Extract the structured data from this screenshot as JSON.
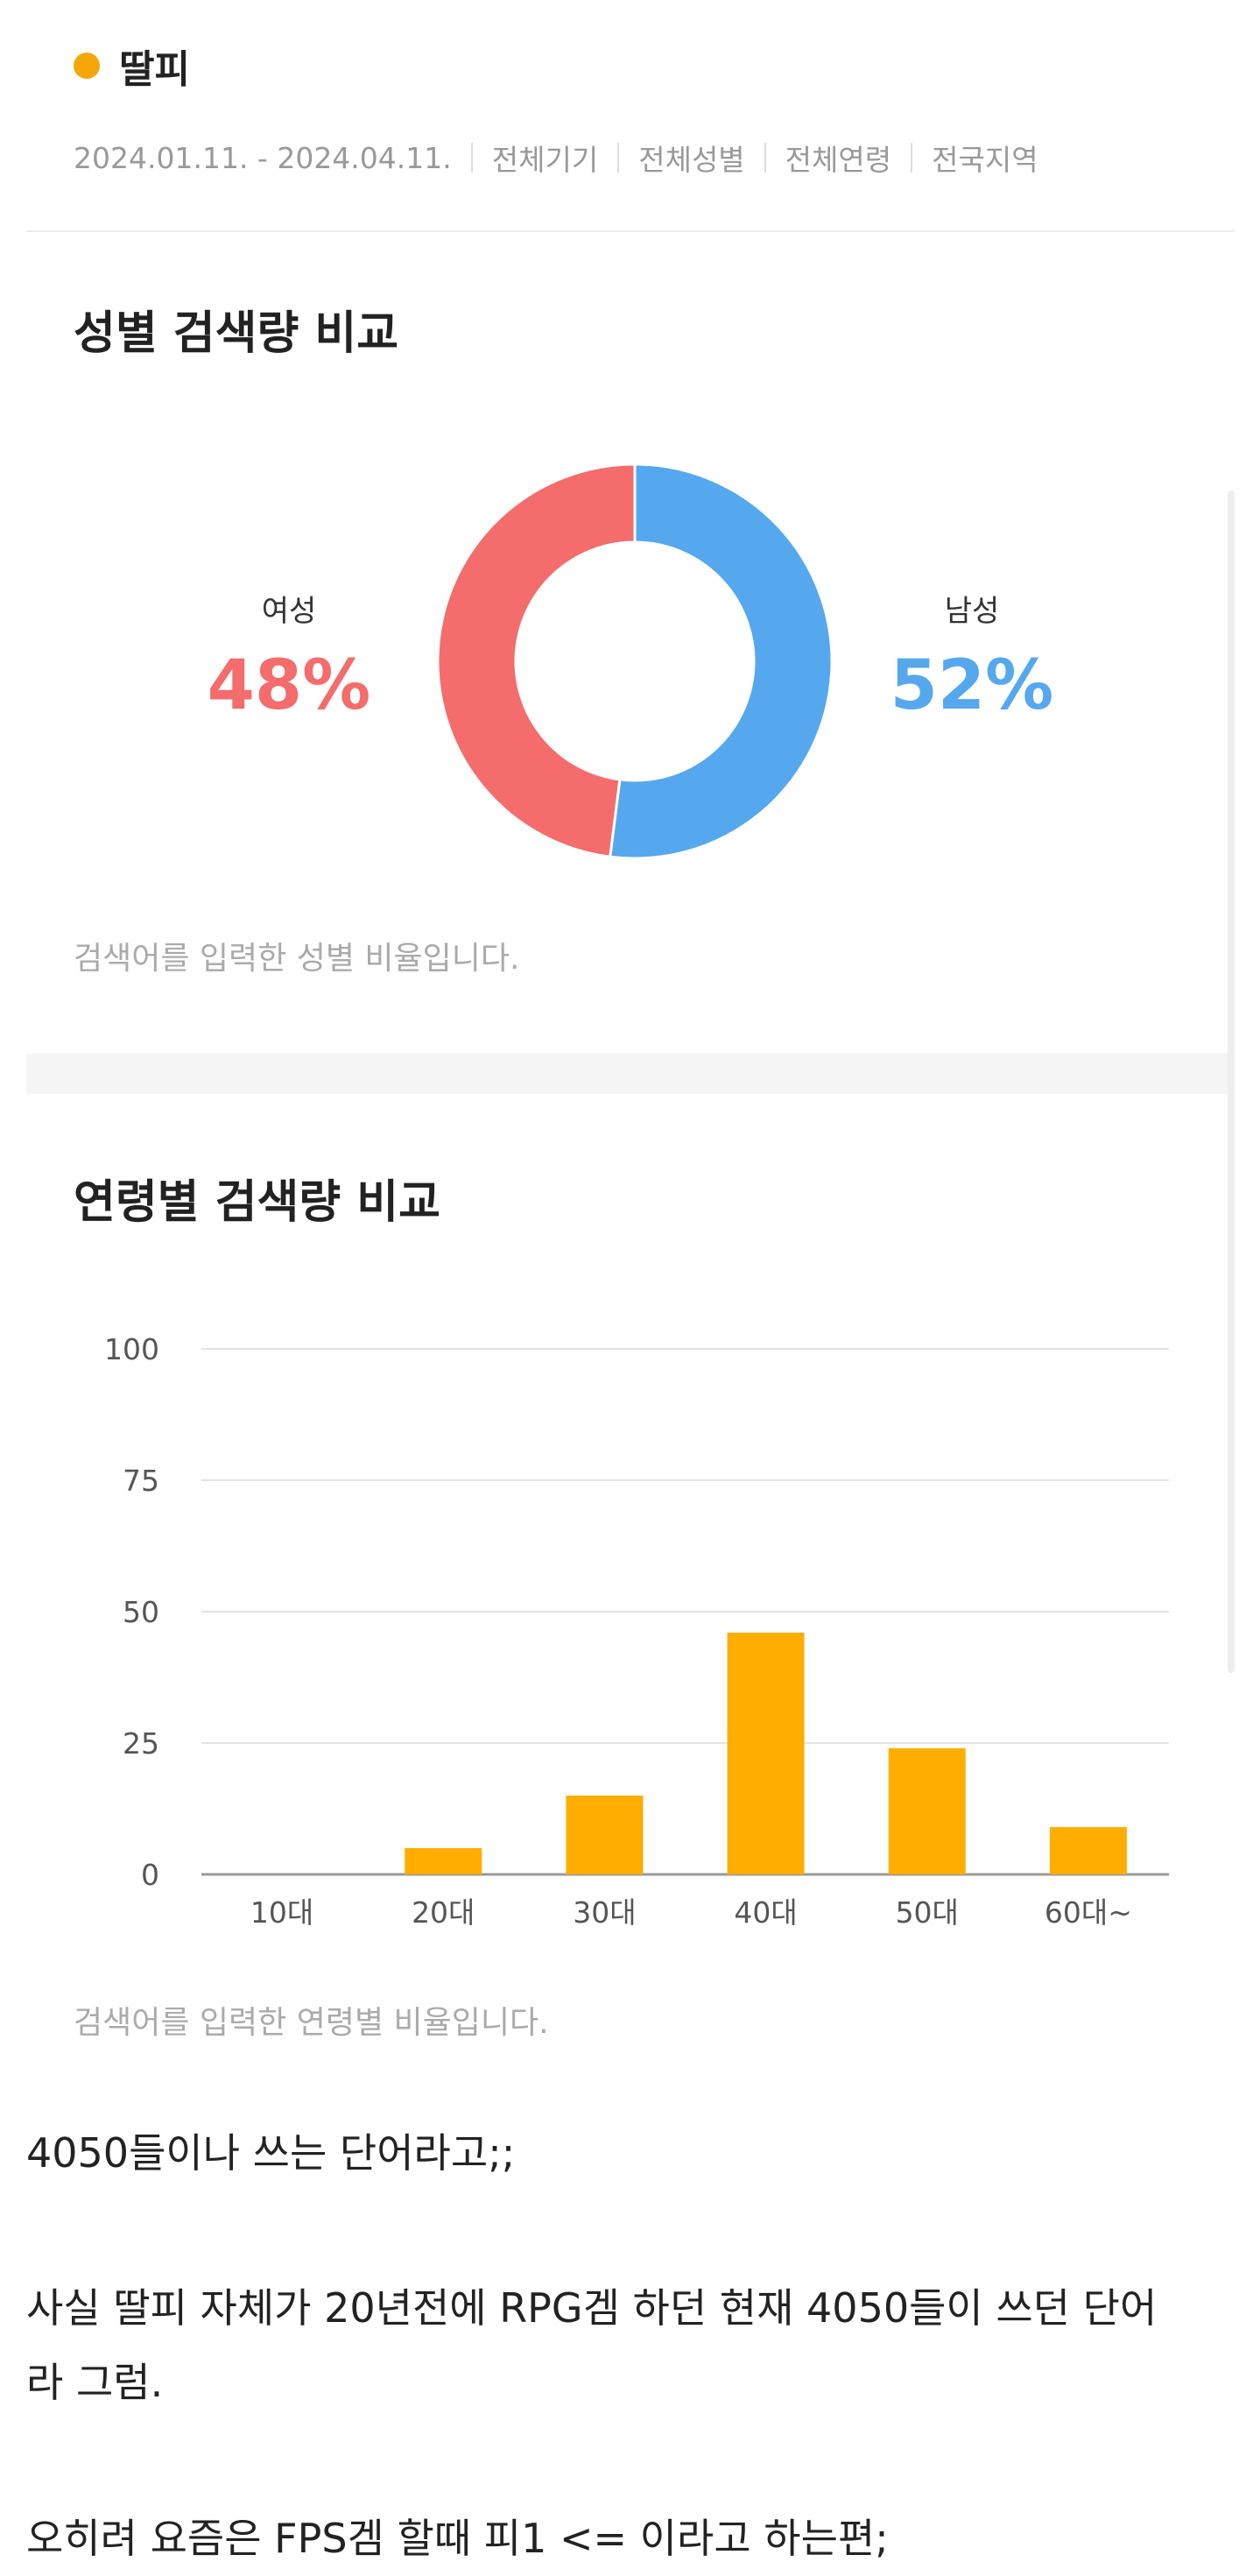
{
  "header": {
    "keyword": "딸피",
    "filters": [
      "2024.01.11. - 2024.04.11.",
      "전체기기",
      "전체성별",
      "전체연령",
      "전국지역"
    ]
  },
  "gender_section": {
    "title": "성별 검색량 비교",
    "female_label": "여성",
    "female_pct": "48%",
    "male_label": "남성",
    "male_pct": "52%",
    "caption": "검색어를 입력한 성별 비율입니다."
  },
  "age_section": {
    "title": "연령별 검색량 비교",
    "caption": "검색어를 입력한 연령별 비율입니다."
  },
  "colors": {
    "accent": "#F5A70A",
    "female": "#F46C6C",
    "male": "#56A8EE",
    "bar": "#FFAD00"
  },
  "chart_data": [
    {
      "type": "pie",
      "categories": [
        "여성",
        "남성"
      ],
      "values": [
        48,
        52
      ]
    },
    {
      "type": "bar",
      "categories": [
        "10대",
        "20대",
        "30대",
        "40대",
        "50대",
        "60대~"
      ],
      "values": [
        0,
        5,
        15,
        46,
        24,
        9
      ],
      "ylim": [
        0,
        100
      ],
      "yticks": [
        0,
        25,
        50,
        75,
        100
      ],
      "grid": true
    }
  ],
  "post": {
    "lines": [
      "4050들이나 쓰는 단어라고;;",
      "사실 딸피 자체가 20년전에 RPG겜 하던 현재 4050들이 쓰던 단어",
      "라 그럼.",
      "오히려 요즘은 FPS겜 할때 피1 <= 이라고 하는편;"
    ]
  }
}
